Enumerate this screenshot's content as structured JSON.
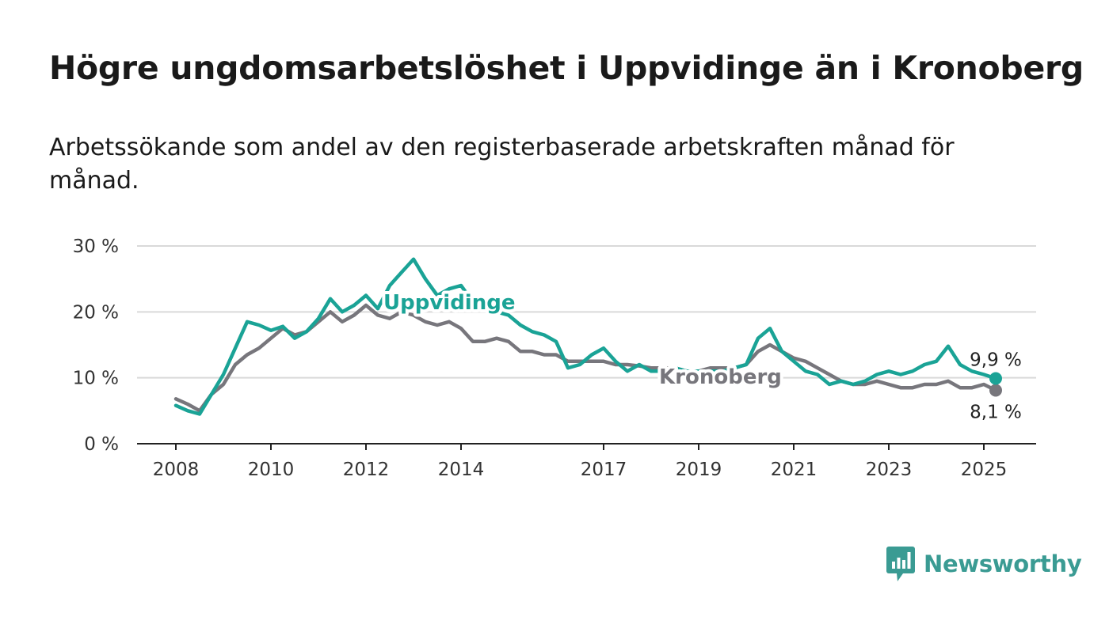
{
  "title": "Högre ungdomsarbetslöshet i Uppvidinge än i Kronoberg",
  "subtitle": "Arbetssökande som andel av den registerbaserade arbetskraften månad för månad.",
  "brand": {
    "name": "Newsworthy",
    "icon": "newsworthy-logo-icon",
    "color": "#3a9b93"
  },
  "colors": {
    "uppvidinge": "#1aa396",
    "kronoberg": "#77767c",
    "grid": "#d9d9d9",
    "axis": "#222222"
  },
  "chart_data": {
    "type": "line",
    "xlabel": "",
    "ylabel": "",
    "ylim": [
      0,
      30
    ],
    "yticks": [
      0,
      10,
      20,
      30
    ],
    "ytick_labels": [
      "0 %",
      "10 %",
      "20 %",
      "30 %"
    ],
    "xlim": [
      "2007-03",
      "2025-11"
    ],
    "xticks": [
      "2008",
      "2010",
      "2012",
      "2014",
      "2017",
      "2019",
      "2021",
      "2023",
      "2025"
    ],
    "grid": true,
    "legend": "inline labels",
    "series": [
      {
        "name": "Uppvidinge",
        "color": "#1aa396",
        "end_label": "9,9 %",
        "points": [
          [
            "2008-01",
            5.8
          ],
          [
            "2008-04",
            5.0
          ],
          [
            "2008-07",
            4.5
          ],
          [
            "2008-10",
            7.5
          ],
          [
            "2009-01",
            10.5
          ],
          [
            "2009-04",
            14.5
          ],
          [
            "2009-07",
            18.5
          ],
          [
            "2009-10",
            18.0
          ],
          [
            "2010-01",
            17.2
          ],
          [
            "2010-04",
            17.8
          ],
          [
            "2010-07",
            16.0
          ],
          [
            "2010-10",
            17.0
          ],
          [
            "2011-01",
            19.0
          ],
          [
            "2011-04",
            22.0
          ],
          [
            "2011-07",
            20.0
          ],
          [
            "2011-10",
            21.0
          ],
          [
            "2012-01",
            22.5
          ],
          [
            "2012-04",
            20.5
          ],
          [
            "2012-07",
            24.0
          ],
          [
            "2012-10",
            26.0
          ],
          [
            "2013-01",
            28.0
          ],
          [
            "2013-04",
            25.0
          ],
          [
            "2013-07",
            22.5
          ],
          [
            "2013-10",
            23.5
          ],
          [
            "2014-01",
            24.0
          ],
          [
            "2014-04",
            21.5
          ],
          [
            "2014-07",
            21.0
          ],
          [
            "2014-10",
            20.0
          ],
          [
            "2015-01",
            19.5
          ],
          [
            "2015-04",
            18.0
          ],
          [
            "2015-07",
            17.0
          ],
          [
            "2015-10",
            16.5
          ],
          [
            "2016-01",
            15.5
          ],
          [
            "2016-04",
            11.5
          ],
          [
            "2016-07",
            12.0
          ],
          [
            "2016-10",
            13.5
          ],
          [
            "2017-01",
            14.5
          ],
          [
            "2017-04",
            12.5
          ],
          [
            "2017-07",
            11.0
          ],
          [
            "2017-10",
            12.0
          ],
          [
            "2018-01",
            11.0
          ],
          [
            "2018-04",
            11.0
          ],
          [
            "2018-07",
            11.5
          ],
          [
            "2018-10",
            11.0
          ],
          [
            "2019-01",
            11.0
          ],
          [
            "2019-04",
            11.0
          ],
          [
            "2019-07",
            11.0
          ],
          [
            "2019-10",
            11.5
          ],
          [
            "2020-01",
            12.0
          ],
          [
            "2020-04",
            16.0
          ],
          [
            "2020-07",
            17.5
          ],
          [
            "2020-10",
            14.0
          ],
          [
            "2021-01",
            12.5
          ],
          [
            "2021-04",
            11.0
          ],
          [
            "2021-07",
            10.5
          ],
          [
            "2021-10",
            9.0
          ],
          [
            "2022-01",
            9.5
          ],
          [
            "2022-04",
            9.0
          ],
          [
            "2022-07",
            9.5
          ],
          [
            "2022-10",
            10.5
          ],
          [
            "2023-01",
            11.0
          ],
          [
            "2023-04",
            10.5
          ],
          [
            "2023-07",
            11.0
          ],
          [
            "2023-10",
            12.0
          ],
          [
            "2024-01",
            12.5
          ],
          [
            "2024-04",
            14.8
          ],
          [
            "2024-07",
            12.0
          ],
          [
            "2024-10",
            11.0
          ],
          [
            "2025-01",
            10.5
          ],
          [
            "2025-04",
            9.9
          ]
        ]
      },
      {
        "name": "Kronoberg",
        "color": "#77767c",
        "end_label": "8,1 %",
        "points": [
          [
            "2008-01",
            6.8
          ],
          [
            "2008-04",
            6.0
          ],
          [
            "2008-07",
            5.0
          ],
          [
            "2008-10",
            7.5
          ],
          [
            "2009-01",
            9.0
          ],
          [
            "2009-04",
            12.0
          ],
          [
            "2009-07",
            13.5
          ],
          [
            "2009-10",
            14.5
          ],
          [
            "2010-01",
            16.0
          ],
          [
            "2010-04",
            17.5
          ],
          [
            "2010-07",
            16.5
          ],
          [
            "2010-10",
            17.0
          ],
          [
            "2011-01",
            18.5
          ],
          [
            "2011-04",
            20.0
          ],
          [
            "2011-07",
            18.5
          ],
          [
            "2011-10",
            19.5
          ],
          [
            "2012-01",
            21.0
          ],
          [
            "2012-04",
            19.5
          ],
          [
            "2012-07",
            19.0
          ],
          [
            "2012-10",
            20.0
          ],
          [
            "2013-01",
            19.5
          ],
          [
            "2013-04",
            18.5
          ],
          [
            "2013-07",
            18.0
          ],
          [
            "2013-10",
            18.5
          ],
          [
            "2014-01",
            17.5
          ],
          [
            "2014-04",
            15.5
          ],
          [
            "2014-07",
            15.5
          ],
          [
            "2014-10",
            16.0
          ],
          [
            "2015-01",
            15.5
          ],
          [
            "2015-04",
            14.0
          ],
          [
            "2015-07",
            14.0
          ],
          [
            "2015-10",
            13.5
          ],
          [
            "2016-01",
            13.5
          ],
          [
            "2016-04",
            12.5
          ],
          [
            "2016-07",
            12.5
          ],
          [
            "2016-10",
            12.5
          ],
          [
            "2017-01",
            12.5
          ],
          [
            "2017-04",
            12.0
          ],
          [
            "2017-07",
            12.0
          ],
          [
            "2017-10",
            11.8
          ],
          [
            "2018-01",
            11.5
          ],
          [
            "2018-04",
            11.5
          ],
          [
            "2018-07",
            11.5
          ],
          [
            "2018-10",
            11.0
          ],
          [
            "2019-01",
            11.0
          ],
          [
            "2019-04",
            11.5
          ],
          [
            "2019-07",
            11.5
          ],
          [
            "2019-10",
            11.5
          ],
          [
            "2020-01",
            12.0
          ],
          [
            "2020-04",
            14.0
          ],
          [
            "2020-07",
            15.0
          ],
          [
            "2020-10",
            14.0
          ],
          [
            "2021-01",
            13.0
          ],
          [
            "2021-04",
            12.5
          ],
          [
            "2021-07",
            11.5
          ],
          [
            "2021-10",
            10.5
          ],
          [
            "2022-01",
            9.5
          ],
          [
            "2022-04",
            9.0
          ],
          [
            "2022-07",
            9.0
          ],
          [
            "2022-10",
            9.5
          ],
          [
            "2023-01",
            9.0
          ],
          [
            "2023-04",
            8.5
          ],
          [
            "2023-07",
            8.5
          ],
          [
            "2023-10",
            9.0
          ],
          [
            "2024-01",
            9.0
          ],
          [
            "2024-04",
            9.5
          ],
          [
            "2024-07",
            8.5
          ],
          [
            "2024-10",
            8.5
          ],
          [
            "2025-01",
            9.0
          ],
          [
            "2025-04",
            8.1
          ]
        ]
      }
    ]
  }
}
